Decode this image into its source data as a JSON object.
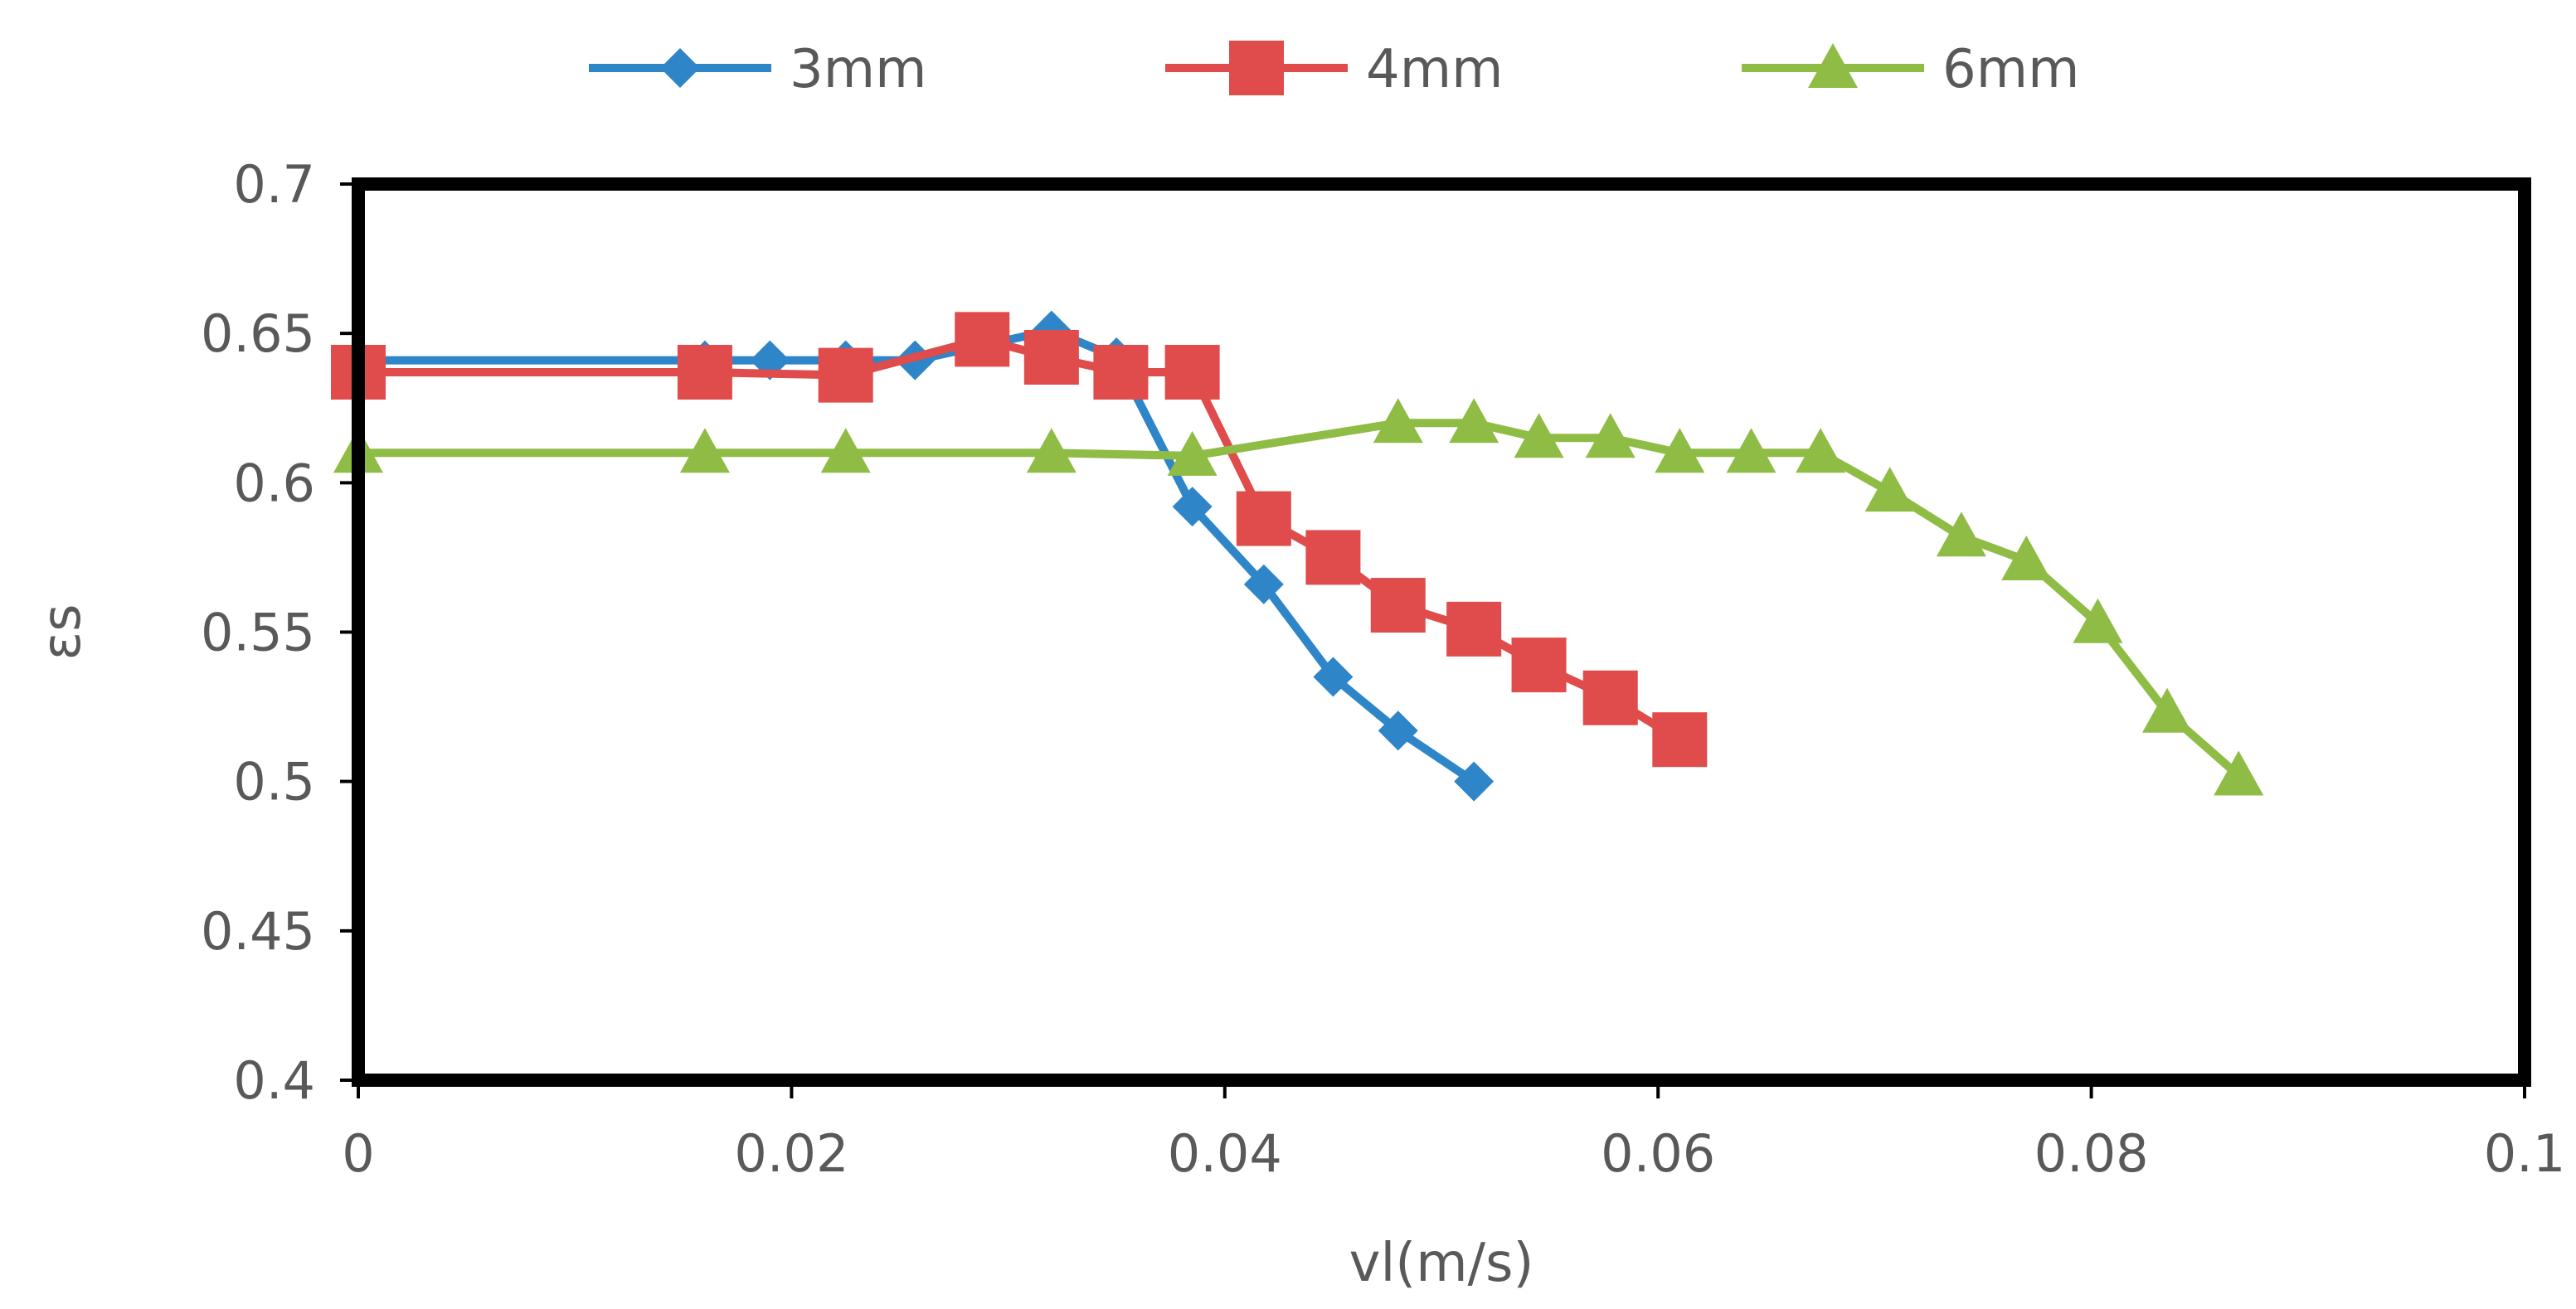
{
  "chart_data": {
    "type": "line",
    "title": "",
    "xlabel": "vl(m/s)",
    "ylabel": "εs",
    "xlim": [
      0,
      0.1
    ],
    "ylim": [
      0.4,
      0.7
    ],
    "x_ticks": [
      0,
      0.02,
      0.04,
      0.06,
      0.08,
      0.1
    ],
    "x_tick_labels": [
      "0",
      "0.02",
      "0.04",
      "0.06",
      "0.08",
      "0.1"
    ],
    "y_ticks": [
      0.4,
      0.45,
      0.5,
      0.55,
      0.6,
      0.65,
      0.7
    ],
    "y_tick_labels": [
      "0.4",
      "0.45",
      "0.5",
      "0.55",
      "0.6",
      "0.65",
      "0.7"
    ],
    "grid": false,
    "legend_position": "top",
    "series": [
      {
        "name": "3mm",
        "marker": "diamond",
        "color": "#2E86C8",
        "x": [
          0,
          0.016,
          0.019,
          0.0225,
          0.0257,
          0.032,
          0.035,
          0.0385,
          0.0418,
          0.045,
          0.048,
          0.0515
        ],
        "y": [
          0.641,
          0.641,
          0.641,
          0.641,
          0.641,
          0.651,
          0.642,
          0.592,
          0.566,
          0.535,
          0.517,
          0.5
        ]
      },
      {
        "name": "4mm",
        "marker": "square",
        "color": "#E04B4B",
        "x": [
          0,
          0.016,
          0.0225,
          0.0288,
          0.032,
          0.0352,
          0.0385,
          0.0418,
          0.045,
          0.048,
          0.0515,
          0.0545,
          0.0578,
          0.061
        ],
        "y": [
          0.637,
          0.637,
          0.636,
          0.648,
          0.642,
          0.637,
          0.637,
          0.588,
          0.575,
          0.559,
          0.551,
          0.539,
          0.528,
          0.514
        ]
      },
      {
        "name": "6mm",
        "marker": "triangle",
        "color": "#8FBC45",
        "x": [
          0,
          0.016,
          0.0225,
          0.032,
          0.0385,
          0.048,
          0.0515,
          0.0545,
          0.0578,
          0.061,
          0.0643,
          0.0675,
          0.0707,
          0.074,
          0.077,
          0.0803,
          0.0835,
          0.0868
        ],
        "y": [
          0.61,
          0.61,
          0.61,
          0.61,
          0.609,
          0.62,
          0.62,
          0.615,
          0.615,
          0.61,
          0.61,
          0.61,
          0.597,
          0.582,
          0.574,
          0.553,
          0.523,
          0.502
        ]
      }
    ]
  }
}
